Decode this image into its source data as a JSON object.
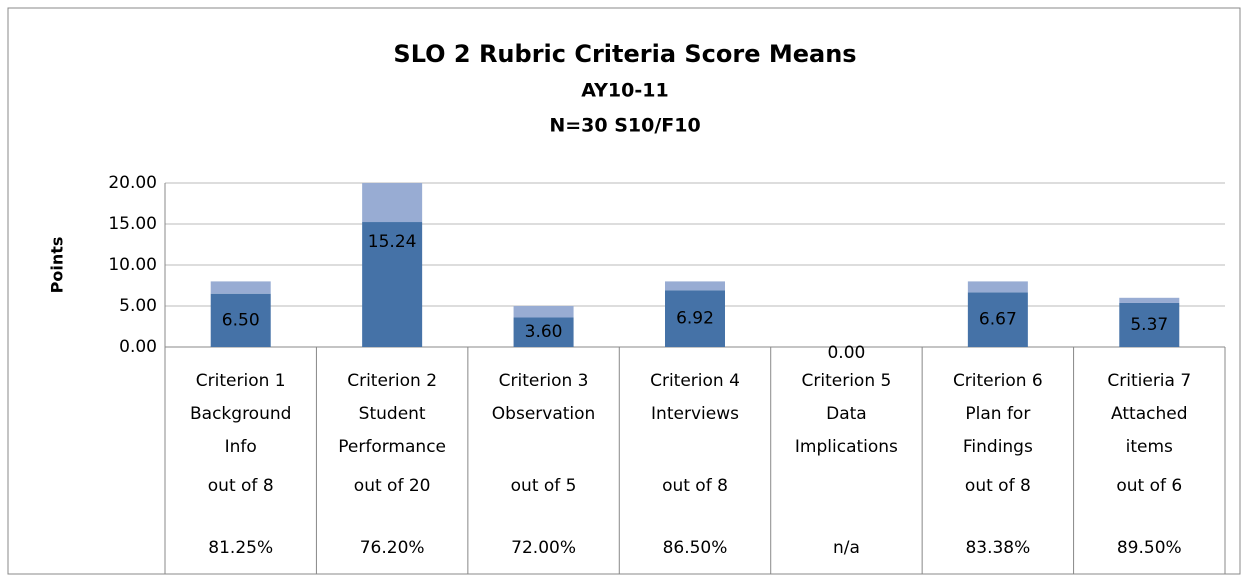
{
  "chart_data": {
    "type": "bar",
    "stacked": true,
    "title": "SLO 2 Rubric Criteria Score Means",
    "subtitle": [
      "AY10-11",
      "N=30 S10/F10"
    ],
    "y_label": "Points",
    "categories": [
      [
        "Criterion 1",
        "Background",
        "Info"
      ],
      [
        "Criterion 2",
        "Student",
        "Performance"
      ],
      [
        "Criterion 3",
        "Observation"
      ],
      [
        "Criterion 4",
        "Interviews"
      ],
      [
        "Criterion 5",
        "Data",
        "Implications"
      ],
      [
        "Criterion 6",
        "Plan for",
        "Findings"
      ],
      [
        "Critieria 7",
        "Attached",
        "items"
      ]
    ],
    "table_rows": [
      [
        "out of 8",
        "out of 20",
        "out of 5",
        "out of 8",
        "",
        "out of 8",
        "out of 6"
      ],
      [
        "81.25%",
        "76.20%",
        "72.00%",
        "86.50%",
        "n/a",
        "83.38%",
        "89.50%"
      ]
    ],
    "series": [
      {
        "color": "#4572a7",
        "values": [
          6.5,
          15.24,
          3.6,
          6.92,
          0,
          6.67,
          5.37
        ],
        "value_labels": [
          "6.50",
          "15.24",
          "3.60",
          "6.92",
          "0.00",
          "6.67",
          "5.37"
        ]
      },
      {
        "color": "#98acd3",
        "values": [
          1.5,
          4.76,
          1.4,
          1.08,
          0,
          1.33,
          0.63
        ]
      }
    ],
    "ylim": [
      0,
      20
    ],
    "yticks": [
      {
        "value": 0,
        "label": "0.00"
      },
      {
        "value": 5,
        "label": "5.00"
      },
      {
        "value": 10,
        "label": "10.00"
      },
      {
        "value": 15,
        "label": "15.00"
      },
      {
        "value": 20,
        "label": "20.00"
      }
    ],
    "grid": true
  }
}
